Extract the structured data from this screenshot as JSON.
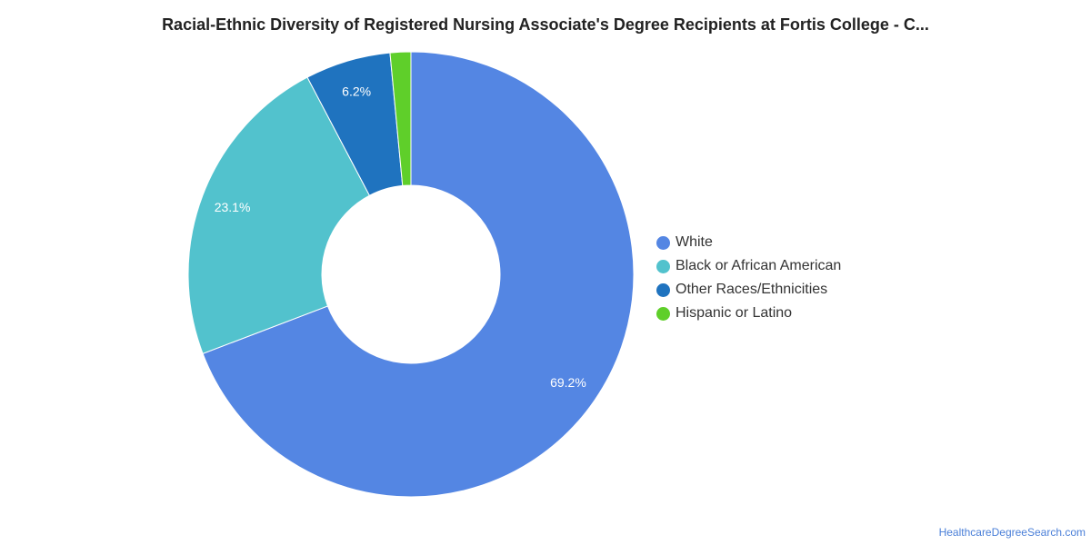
{
  "title": "Racial-Ethnic Diversity of Registered Nursing Associate's Degree Recipients at Fortis College - C...",
  "credit": "HealthcareDegreeSearch.com",
  "chart_data": {
    "type": "pie",
    "donut": true,
    "legend_position": "right",
    "slices": [
      {
        "label": "White",
        "value": 69.2,
        "display": "69.2%",
        "color": "#5486e3"
      },
      {
        "label": "Black or African American",
        "value": 23.1,
        "display": "23.1%",
        "color": "#52c2cd"
      },
      {
        "label": "Other Races/Ethnicities",
        "value": 6.2,
        "display": "6.2%",
        "color": "#1f73bf"
      },
      {
        "label": "Hispanic or Latino",
        "value": 1.5,
        "display": "",
        "color": "#5fcf2a"
      }
    ]
  }
}
